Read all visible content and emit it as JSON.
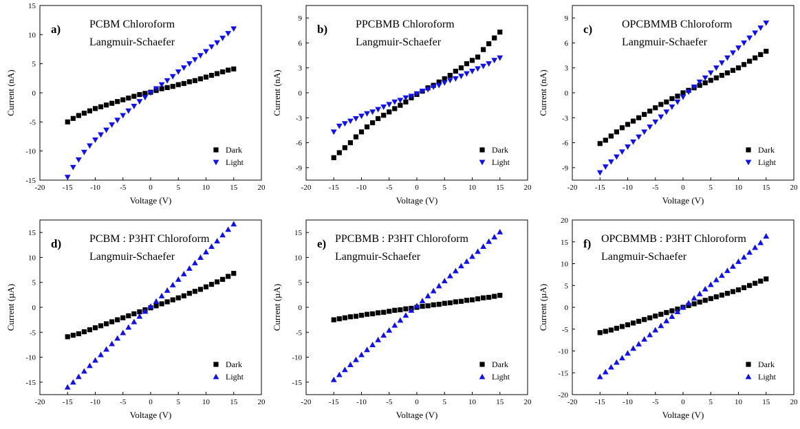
{
  "chart_data": [
    {
      "type": "scatter",
      "panel_letter": "a)",
      "title": "PCBM Chloroform",
      "subtitle": "Langmuir-Schaefer",
      "xlabel": "Voltage (V)",
      "ylabel": "Current (nA)",
      "xlim": [
        -20,
        20
      ],
      "ylim": [
        -15,
        15
      ],
      "xticks": [
        -20,
        -15,
        -10,
        -5,
        0,
        5,
        10,
        15,
        20
      ],
      "yticks": [
        -15,
        -10,
        -5,
        0,
        5,
        10,
        15
      ],
      "legend_position": "bottom-right",
      "series": [
        {
          "name": "Dark",
          "marker": "square",
          "color": "#000000",
          "x": [
            -15,
            -14,
            -13,
            -12,
            -11,
            -10,
            -9,
            -8,
            -7,
            -6,
            -5,
            -4,
            -3,
            -2,
            -1,
            0,
            1,
            2,
            3,
            4,
            5,
            6,
            7,
            8,
            9,
            10,
            11,
            12,
            13,
            14,
            15
          ],
          "y": [
            -5.0,
            -4.4,
            -3.9,
            -3.5,
            -3.1,
            -2.7,
            -2.4,
            -2.1,
            -1.8,
            -1.5,
            -1.2,
            -0.9,
            -0.6,
            -0.3,
            -0.1,
            0.1,
            0.4,
            0.7,
            0.9,
            1.1,
            1.4,
            1.6,
            1.9,
            2.1,
            2.4,
            2.7,
            3.0,
            3.3,
            3.6,
            3.9,
            4.1
          ]
        },
        {
          "name": "Light",
          "marker": "triangle-down",
          "color": "#1010f0",
          "x": [
            -15,
            -14,
            -13,
            -12,
            -11,
            -10,
            -9,
            -8,
            -7,
            -6,
            -5,
            -4,
            -3,
            -2,
            -1,
            0,
            1,
            2,
            3,
            4,
            5,
            6,
            7,
            8,
            9,
            10,
            11,
            12,
            13,
            14,
            15
          ],
          "y": [
            -14.5,
            -12.8,
            -11.5,
            -10.2,
            -9.1,
            -8.1,
            -7.2,
            -6.4,
            -5.5,
            -4.7,
            -3.9,
            -3.1,
            -2.3,
            -1.5,
            -0.8,
            0.0,
            0.7,
            1.4,
            2.1,
            2.8,
            3.6,
            4.3,
            5.0,
            5.7,
            6.4,
            7.1,
            7.9,
            8.6,
            9.4,
            10.2,
            11.0
          ]
        }
      ]
    },
    {
      "type": "scatter",
      "panel_letter": "b)",
      "title": "PPCBMB Chloroform",
      "subtitle": "Langmuir-Schaefer",
      "xlabel": "Voltage (V)",
      "ylabel": "Current (nA)",
      "xlim": [
        -20,
        20
      ],
      "ylim": [
        -10.5,
        10.5
      ],
      "xticks": [
        -20,
        -15,
        -10,
        -5,
        0,
        5,
        10,
        15,
        20
      ],
      "yticks": [
        -9,
        -6,
        -3,
        0,
        3,
        6,
        9
      ],
      "legend_position": "bottom-right",
      "series": [
        {
          "name": "Dark",
          "marker": "square",
          "color": "#000000",
          "x": [
            -15,
            -14,
            -13,
            -12,
            -11,
            -10,
            -9,
            -8,
            -7,
            -6,
            -5,
            -4,
            -3,
            -2,
            -1,
            0,
            1,
            2,
            3,
            4,
            5,
            6,
            7,
            8,
            9,
            10,
            11,
            12,
            13,
            14,
            15
          ],
          "y": [
            -7.8,
            -7.2,
            -6.6,
            -6.0,
            -5.3,
            -4.7,
            -4.1,
            -3.6,
            -3.1,
            -2.7,
            -2.3,
            -1.9,
            -1.5,
            -1.1,
            -0.6,
            -0.2,
            0.2,
            0.6,
            0.9,
            1.3,
            1.7,
            2.1,
            2.6,
            3.0,
            3.5,
            3.9,
            4.3,
            5.2,
            5.9,
            6.6,
            7.3
          ]
        },
        {
          "name": "Light",
          "marker": "triangle-down",
          "color": "#1010f0",
          "x": [
            -15,
            -14,
            -13,
            -12,
            -11,
            -10,
            -9,
            -8,
            -7,
            -6,
            -5,
            -4,
            -3,
            -2,
            -1,
            0,
            1,
            2,
            3,
            4,
            5,
            6,
            7,
            8,
            9,
            10,
            11,
            12,
            13,
            14,
            15
          ],
          "y": [
            -4.7,
            -4.0,
            -3.7,
            -3.4,
            -3.1,
            -2.8,
            -2.5,
            -2.3,
            -2.0,
            -1.7,
            -1.4,
            -1.1,
            -0.9,
            -0.6,
            -0.4,
            -0.1,
            0.2,
            0.4,
            0.7,
            0.9,
            1.2,
            1.5,
            1.7,
            2.0,
            2.3,
            2.6,
            2.9,
            3.2,
            3.5,
            3.9,
            4.2
          ]
        }
      ]
    },
    {
      "type": "scatter",
      "panel_letter": "c)",
      "title": "OPCBMMB Chloroform",
      "subtitle": "Langmuir-Schaefer",
      "xlabel": "Voltage (V)",
      "ylabel": "Current (nA)",
      "xlim": [
        -20,
        20
      ],
      "ylim": [
        -10.5,
        10.5
      ],
      "xticks": [
        -20,
        -15,
        -10,
        -5,
        0,
        5,
        10,
        15,
        20
      ],
      "yticks": [
        -9,
        -6,
        -3,
        0,
        3,
        6,
        9
      ],
      "legend_position": "bottom-right",
      "series": [
        {
          "name": "Dark",
          "marker": "square",
          "color": "#000000",
          "x": [
            -15,
            -14,
            -13,
            -12,
            -11,
            -10,
            -9,
            -8,
            -7,
            -6,
            -5,
            -4,
            -3,
            -2,
            -1,
            0,
            1,
            2,
            3,
            4,
            5,
            6,
            7,
            8,
            9,
            10,
            11,
            12,
            13,
            14,
            15
          ],
          "y": [
            -6.1,
            -5.7,
            -5.2,
            -4.7,
            -4.2,
            -3.8,
            -3.4,
            -3.0,
            -2.6,
            -2.2,
            -1.8,
            -1.4,
            -1.1,
            -0.7,
            -0.4,
            0.0,
            0.3,
            0.6,
            0.9,
            1.2,
            1.5,
            1.8,
            2.1,
            2.4,
            2.7,
            3.0,
            3.4,
            3.8,
            4.2,
            4.6,
            5.0
          ]
        },
        {
          "name": "Light",
          "marker": "triangle-down",
          "color": "#1010f0",
          "x": [
            -15,
            -14,
            -13,
            -12,
            -11,
            -10,
            -9,
            -8,
            -7,
            -6,
            -5,
            -4,
            -3,
            -2,
            -1,
            0,
            1,
            2,
            3,
            4,
            5,
            6,
            7,
            8,
            9,
            10,
            11,
            12,
            13,
            14,
            15
          ],
          "y": [
            -9.6,
            -8.9,
            -8.3,
            -7.7,
            -7.1,
            -6.5,
            -5.9,
            -5.3,
            -4.7,
            -4.1,
            -3.5,
            -2.9,
            -2.3,
            -1.7,
            -1.1,
            -0.5,
            0.1,
            0.7,
            1.3,
            1.8,
            2.4,
            3.0,
            3.6,
            4.2,
            4.8,
            5.4,
            6.0,
            6.6,
            7.2,
            7.8,
            8.4
          ]
        }
      ]
    },
    {
      "type": "scatter",
      "panel_letter": "d)",
      "title": "PCBM : P3HT Chloroform",
      "subtitle": "Langmuir-Schaefer",
      "xlabel": "Voltage (V)",
      "ylabel": "Current (µA)",
      "xlim": [
        -20,
        20
      ],
      "ylim": [
        -17.5,
        17.5
      ],
      "xticks": [
        -20,
        -15,
        -10,
        -5,
        0,
        5,
        10,
        15,
        20
      ],
      "yticks": [
        -15,
        -10,
        -5,
        0,
        5,
        10,
        15
      ],
      "legend_position": "bottom-right",
      "series": [
        {
          "name": "Dark",
          "marker": "square",
          "color": "#000000",
          "x": [
            -15,
            -14,
            -13,
            -12,
            -11,
            -10,
            -9,
            -8,
            -7,
            -6,
            -5,
            -4,
            -3,
            -2,
            -1,
            0,
            1,
            2,
            3,
            4,
            5,
            6,
            7,
            8,
            9,
            10,
            11,
            12,
            13,
            14,
            15
          ],
          "y": [
            -5.9,
            -5.6,
            -5.3,
            -4.9,
            -4.5,
            -4.1,
            -3.7,
            -3.3,
            -2.9,
            -2.5,
            -2.1,
            -1.7,
            -1.3,
            -0.9,
            -0.5,
            -0.1,
            0.3,
            0.7,
            1.1,
            1.5,
            1.9,
            2.3,
            2.8,
            3.2,
            3.6,
            4.1,
            4.6,
            5.1,
            5.6,
            6.2,
            6.8
          ]
        },
        {
          "name": "Light",
          "marker": "triangle-up",
          "color": "#1010f0",
          "x": [
            -15,
            -14,
            -13,
            -12,
            -11,
            -10,
            -9,
            -8,
            -7,
            -6,
            -5,
            -4,
            -3,
            -2,
            -1,
            0,
            1,
            2,
            3,
            4,
            5,
            6,
            7,
            8,
            9,
            10,
            11,
            12,
            13,
            14,
            15
          ],
          "y": [
            -16.0,
            -15.0,
            -13.9,
            -12.8,
            -11.7,
            -10.6,
            -9.5,
            -8.4,
            -7.3,
            -6.2,
            -5.1,
            -4.0,
            -2.9,
            -1.8,
            -0.8,
            0.2,
            1.2,
            2.3,
            3.4,
            4.5,
            5.6,
            6.7,
            7.8,
            8.9,
            10.0,
            11.1,
            12.2,
            13.3,
            14.5,
            15.6,
            16.7
          ]
        }
      ]
    },
    {
      "type": "scatter",
      "panel_letter": "e)",
      "title": "PPCBMB : P3HT Chloroform",
      "subtitle": "Langmuir-Schaefer",
      "xlabel": "Voltage (V)",
      "ylabel": "Current (µA)",
      "xlim": [
        -20,
        20
      ],
      "ylim": [
        -17.5,
        17.5
      ],
      "xticks": [
        -20,
        -15,
        -10,
        -5,
        0,
        5,
        10,
        15,
        20
      ],
      "yticks": [
        -15,
        -10,
        -5,
        0,
        5,
        10,
        15
      ],
      "legend_position": "bottom-right",
      "series": [
        {
          "name": "Dark",
          "marker": "square",
          "color": "#000000",
          "x": [
            -15,
            -14,
            -13,
            -12,
            -11,
            -10,
            -9,
            -8,
            -7,
            -6,
            -5,
            -4,
            -3,
            -2,
            -1,
            0,
            1,
            2,
            3,
            4,
            5,
            6,
            7,
            8,
            9,
            10,
            11,
            12,
            13,
            14,
            15
          ],
          "y": [
            -2.5,
            -2.3,
            -2.1,
            -1.9,
            -1.8,
            -1.6,
            -1.4,
            -1.3,
            -1.1,
            -1.0,
            -0.8,
            -0.6,
            -0.5,
            -0.3,
            -0.2,
            0.0,
            0.2,
            0.3,
            0.5,
            0.6,
            0.8,
            0.9,
            1.1,
            1.2,
            1.4,
            1.5,
            1.7,
            1.9,
            2.0,
            2.2,
            2.4
          ]
        },
        {
          "name": "Light",
          "marker": "triangle-up",
          "color": "#1010f0",
          "x": [
            -15,
            -14,
            -13,
            -12,
            -11,
            -10,
            -9,
            -8,
            -7,
            -6,
            -5,
            -4,
            -3,
            -2,
            -1,
            0,
            1,
            2,
            3,
            4,
            5,
            6,
            7,
            8,
            9,
            10,
            11,
            12,
            13,
            14,
            15
          ],
          "y": [
            -14.5,
            -13.5,
            -12.5,
            -11.5,
            -10.5,
            -9.5,
            -8.5,
            -7.5,
            -6.5,
            -5.6,
            -4.6,
            -3.6,
            -2.6,
            -1.6,
            -0.6,
            0.3,
            1.3,
            2.3,
            3.3,
            4.3,
            5.3,
            6.3,
            7.3,
            8.3,
            9.2,
            10.2,
            11.2,
            12.2,
            13.2,
            14.1,
            15.1
          ]
        }
      ]
    },
    {
      "type": "scatter",
      "panel_letter": "f)",
      "title": "OPCBMMB : P3HT Chloroform",
      "subtitle": "Langmuir-Schaefer",
      "xlabel": "Voltage (V)",
      "ylabel": "Current (µA)",
      "xlim": [
        -20,
        20
      ],
      "ylim": [
        -20,
        20
      ],
      "xticks": [
        -20,
        -15,
        -10,
        -5,
        0,
        5,
        10,
        15,
        20
      ],
      "yticks": [
        -20,
        -15,
        -10,
        -5,
        0,
        5,
        10,
        15,
        20
      ],
      "legend_position": "bottom-right",
      "series": [
        {
          "name": "Dark",
          "marker": "square",
          "color": "#000000",
          "x": [
            -15,
            -14,
            -13,
            -12,
            -11,
            -10,
            -9,
            -8,
            -7,
            -6,
            -5,
            -4,
            -3,
            -2,
            -1,
            0,
            1,
            2,
            3,
            4,
            5,
            6,
            7,
            8,
            9,
            10,
            11,
            12,
            13,
            14,
            15
          ],
          "y": [
            -5.8,
            -5.5,
            -5.2,
            -4.8,
            -4.4,
            -4.0,
            -3.6,
            -3.2,
            -2.8,
            -2.4,
            -2.0,
            -1.6,
            -1.2,
            -0.8,
            -0.4,
            0.0,
            0.4,
            0.8,
            1.2,
            1.6,
            2.0,
            2.4,
            2.8,
            3.2,
            3.6,
            4.0,
            4.5,
            5.0,
            5.5,
            6.0,
            6.5
          ]
        },
        {
          "name": "Light",
          "marker": "triangle-up",
          "color": "#1010f0",
          "x": [
            -15,
            -14,
            -13,
            -12,
            -11,
            -10,
            -9,
            -8,
            -7,
            -6,
            -5,
            -4,
            -3,
            -2,
            -1,
            0,
            1,
            2,
            3,
            4,
            5,
            6,
            7,
            8,
            9,
            10,
            11,
            12,
            13,
            14,
            15
          ],
          "y": [
            -15.9,
            -14.8,
            -13.7,
            -12.6,
            -11.6,
            -10.5,
            -9.4,
            -8.4,
            -7.3,
            -6.3,
            -5.2,
            -4.2,
            -3.1,
            -2.1,
            -1.0,
            0.0,
            1.0,
            2.1,
            3.1,
            4.2,
            5.2,
            6.3,
            7.3,
            8.4,
            9.4,
            10.5,
            11.5,
            12.6,
            13.7,
            14.8,
            16.3
          ]
        }
      ]
    }
  ]
}
